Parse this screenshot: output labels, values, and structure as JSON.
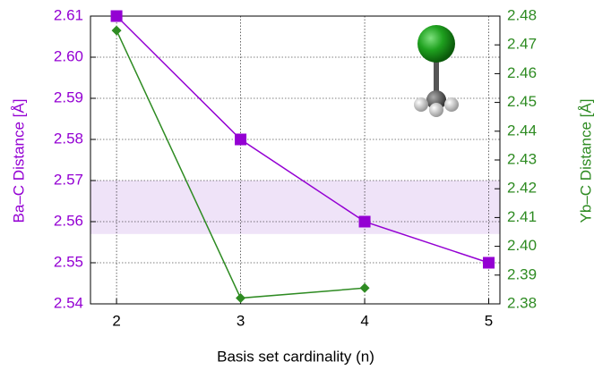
{
  "chart_data": {
    "type": "line",
    "xlabel": "Basis set cardinality (n)",
    "ylabel": "Ba–C Distance [Å]",
    "y2label": "Yb–C Distance [Å]",
    "x": [
      2,
      3,
      4,
      5
    ],
    "series": [
      {
        "color": "#9400d3",
        "marker": "square",
        "values": [
          2.61,
          2.58,
          2.56,
          2.55
        ]
      },
      {
        "color": "#2e8b22",
        "marker": "diamond",
        "axis": "y2",
        "values": [
          2.475,
          2.382,
          2.3855,
          null
        ]
      }
    ],
    "shaded_range": {
      "ymin": 2.557,
      "ymax": 2.57,
      "color": "#efe3f8"
    },
    "xlim": [
      1.79,
      5.09
    ],
    "xticks": [
      2,
      3,
      4,
      5
    ],
    "ylim": [
      2.54,
      2.61
    ],
    "yticks": [
      2.54,
      2.55,
      2.56,
      2.57,
      2.58,
      2.59,
      {
        "value": 2.6,
        "label": "2.60"
      },
      2.61
    ],
    "y2lim": [
      2.38,
      2.48
    ],
    "y2ticks": [
      2.38,
      2.39,
      {
        "value": 2.4,
        "label": "2.40"
      },
      2.41,
      2.42,
      2.43,
      2.44,
      2.45,
      2.46,
      2.47,
      2.48
    ],
    "grid": true
  }
}
